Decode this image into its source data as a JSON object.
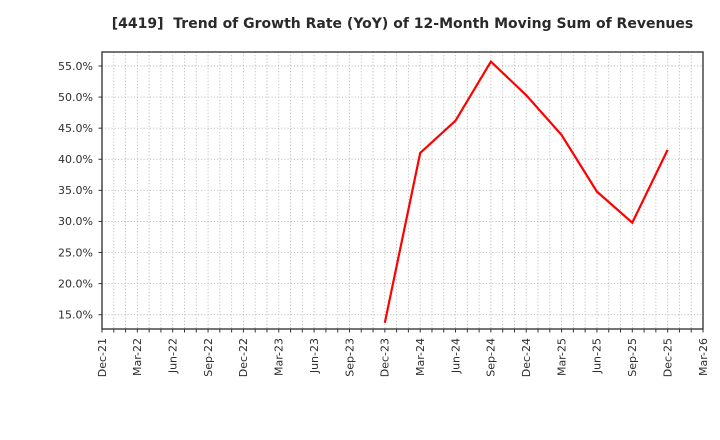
{
  "chart_data": {
    "type": "line",
    "title": "[4419]  Trend of Growth Rate (YoY) of 12-Month Moving Sum of Revenues",
    "xlabel": "",
    "ylabel": "",
    "x_tick_labels": [
      "Dec-21",
      "Mar-22",
      "Jun-22",
      "Sep-22",
      "Dec-22",
      "Mar-23",
      "Jun-23",
      "Sep-23",
      "Dec-23",
      "Mar-24",
      "Jun-24",
      "Sep-24",
      "Dec-24",
      "Mar-25",
      "Jun-25",
      "Sep-25",
      "Dec-25",
      "Mar-26"
    ],
    "y_ticks": [
      15,
      20,
      25,
      30,
      35,
      40,
      45,
      50,
      55
    ],
    "y_tick_labels": [
      "15.0%",
      "20.0%",
      "25.0%",
      "30.0%",
      "35.0%",
      "40.0%",
      "45.0%",
      "50.0%",
      "55.0%"
    ],
    "ylim": [
      12.7,
      57.25
    ],
    "grid": "on",
    "legend": "none",
    "series": [
      {
        "color": "#ff0000",
        "points": [
          {
            "date": "Dec-23",
            "value": 13.7
          },
          {
            "date": "Mar-24",
            "value": 41.0
          },
          {
            "date": "Jun-24",
            "value": 46.2
          },
          {
            "date": "Sep-24",
            "value": 55.7
          },
          {
            "date": "Dec-24",
            "value": 50.3
          },
          {
            "date": "Mar-25",
            "value": 43.9
          },
          {
            "date": "Jun-25",
            "value": 34.8
          },
          {
            "date": "Sep-25",
            "value": 29.8
          },
          {
            "date": "Dec-25",
            "value": 41.5
          }
        ]
      }
    ]
  }
}
